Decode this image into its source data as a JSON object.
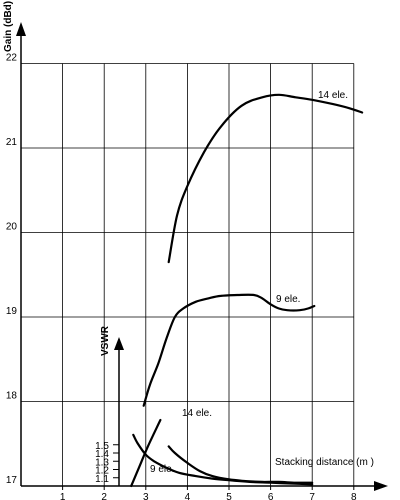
{
  "chart_data": [
    {
      "type": "line",
      "title": "",
      "xlabel": "Stacking distance (m )",
      "ylabel": "Gain (dBd)",
      "xlim": [
        0,
        8.3
      ],
      "ylim": [
        17,
        22
      ],
      "x_ticks": [
        "1",
        "2",
        "3",
        "4",
        "5",
        "6",
        "7",
        "8"
      ],
      "y_ticks": [
        "17",
        "18",
        "19",
        "20",
        "21",
        "22"
      ],
      "grid": true,
      "series": [
        {
          "name": "14 ele.",
          "x": [
            3.55,
            3.75,
            4.0,
            4.4,
            4.8,
            5.3,
            5.8,
            6.2,
            6.6,
            7.0,
            7.5,
            7.9,
            8.2
          ],
          "y": [
            19.65,
            20.2,
            20.55,
            20.95,
            21.25,
            21.5,
            21.6,
            21.63,
            21.6,
            21.57,
            21.52,
            21.47,
            21.42
          ]
        },
        {
          "name": "9 ele.",
          "x": [
            2.95,
            3.1,
            3.3,
            3.5,
            3.7,
            3.9,
            4.2,
            4.5,
            4.8,
            5.2,
            5.6,
            5.8,
            6.0,
            6.2,
            6.4,
            6.7,
            6.9,
            7.05
          ],
          "y": [
            17.95,
            18.2,
            18.45,
            18.75,
            19.0,
            19.1,
            19.18,
            19.22,
            19.25,
            19.26,
            19.26,
            19.22,
            19.15,
            19.1,
            19.08,
            19.08,
            19.1,
            19.13
          ]
        }
      ],
      "curve_labels": [
        {
          "series": "14 ele.",
          "text": "14 ele."
        },
        {
          "series": "9 ele.",
          "text": "9 ele."
        }
      ],
      "colors": {
        "line": "#000000",
        "grid": "#000000",
        "background": "#ffffff"
      }
    },
    {
      "type": "line",
      "title": "",
      "xlabel": "Stacking distance (m )",
      "ylabel": "VSWR",
      "xlim": [
        0,
        8.3
      ],
      "ylim": [
        1.0,
        1.9
      ],
      "y_ticks": [
        "1.1",
        "1.2",
        "1.3",
        "1.4",
        "1.5"
      ],
      "series": [
        {
          "name": "9 ele.",
          "x": [
            2.7,
            2.8,
            3.0,
            3.2,
            3.5,
            3.8,
            4.2,
            4.6,
            5.0,
            5.5,
            6.0,
            6.5,
            7.0
          ],
          "y": [
            1.62,
            1.52,
            1.38,
            1.3,
            1.22,
            1.16,
            1.12,
            1.09,
            1.07,
            1.05,
            1.04,
            1.03,
            1.02
          ]
        },
        {
          "name": "14 ele.",
          "x": [
            3.55,
            3.7,
            4.0,
            4.3,
            4.6,
            5.0,
            5.4,
            5.8,
            6.2,
            6.6,
            7.0
          ],
          "y": [
            1.48,
            1.4,
            1.28,
            1.18,
            1.12,
            1.08,
            1.06,
            1.05,
            1.05,
            1.04,
            1.04
          ]
        },
        {
          "name": "",
          "x": [
            2.65,
            2.75,
            2.9,
            3.05,
            3.2,
            3.35
          ],
          "y": [
            1.0,
            1.12,
            1.3,
            1.48,
            1.64,
            1.8
          ]
        }
      ],
      "curve_labels": [
        {
          "series": "14 ele.",
          "text": "14 ele."
        },
        {
          "series": "9 ele.",
          "text": "9 ele."
        }
      ]
    }
  ]
}
